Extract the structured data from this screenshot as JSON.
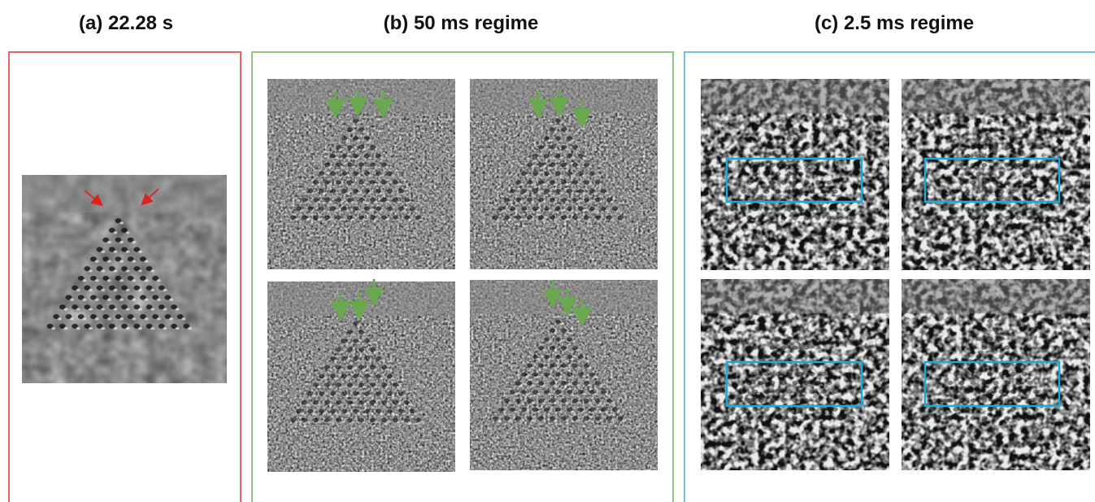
{
  "panels": [
    {
      "title": "(a) 22.28 s"
    },
    {
      "title": "(b) 50 ms regime"
    },
    {
      "title": "(c) 2.5 ms regime"
    }
  ]
}
